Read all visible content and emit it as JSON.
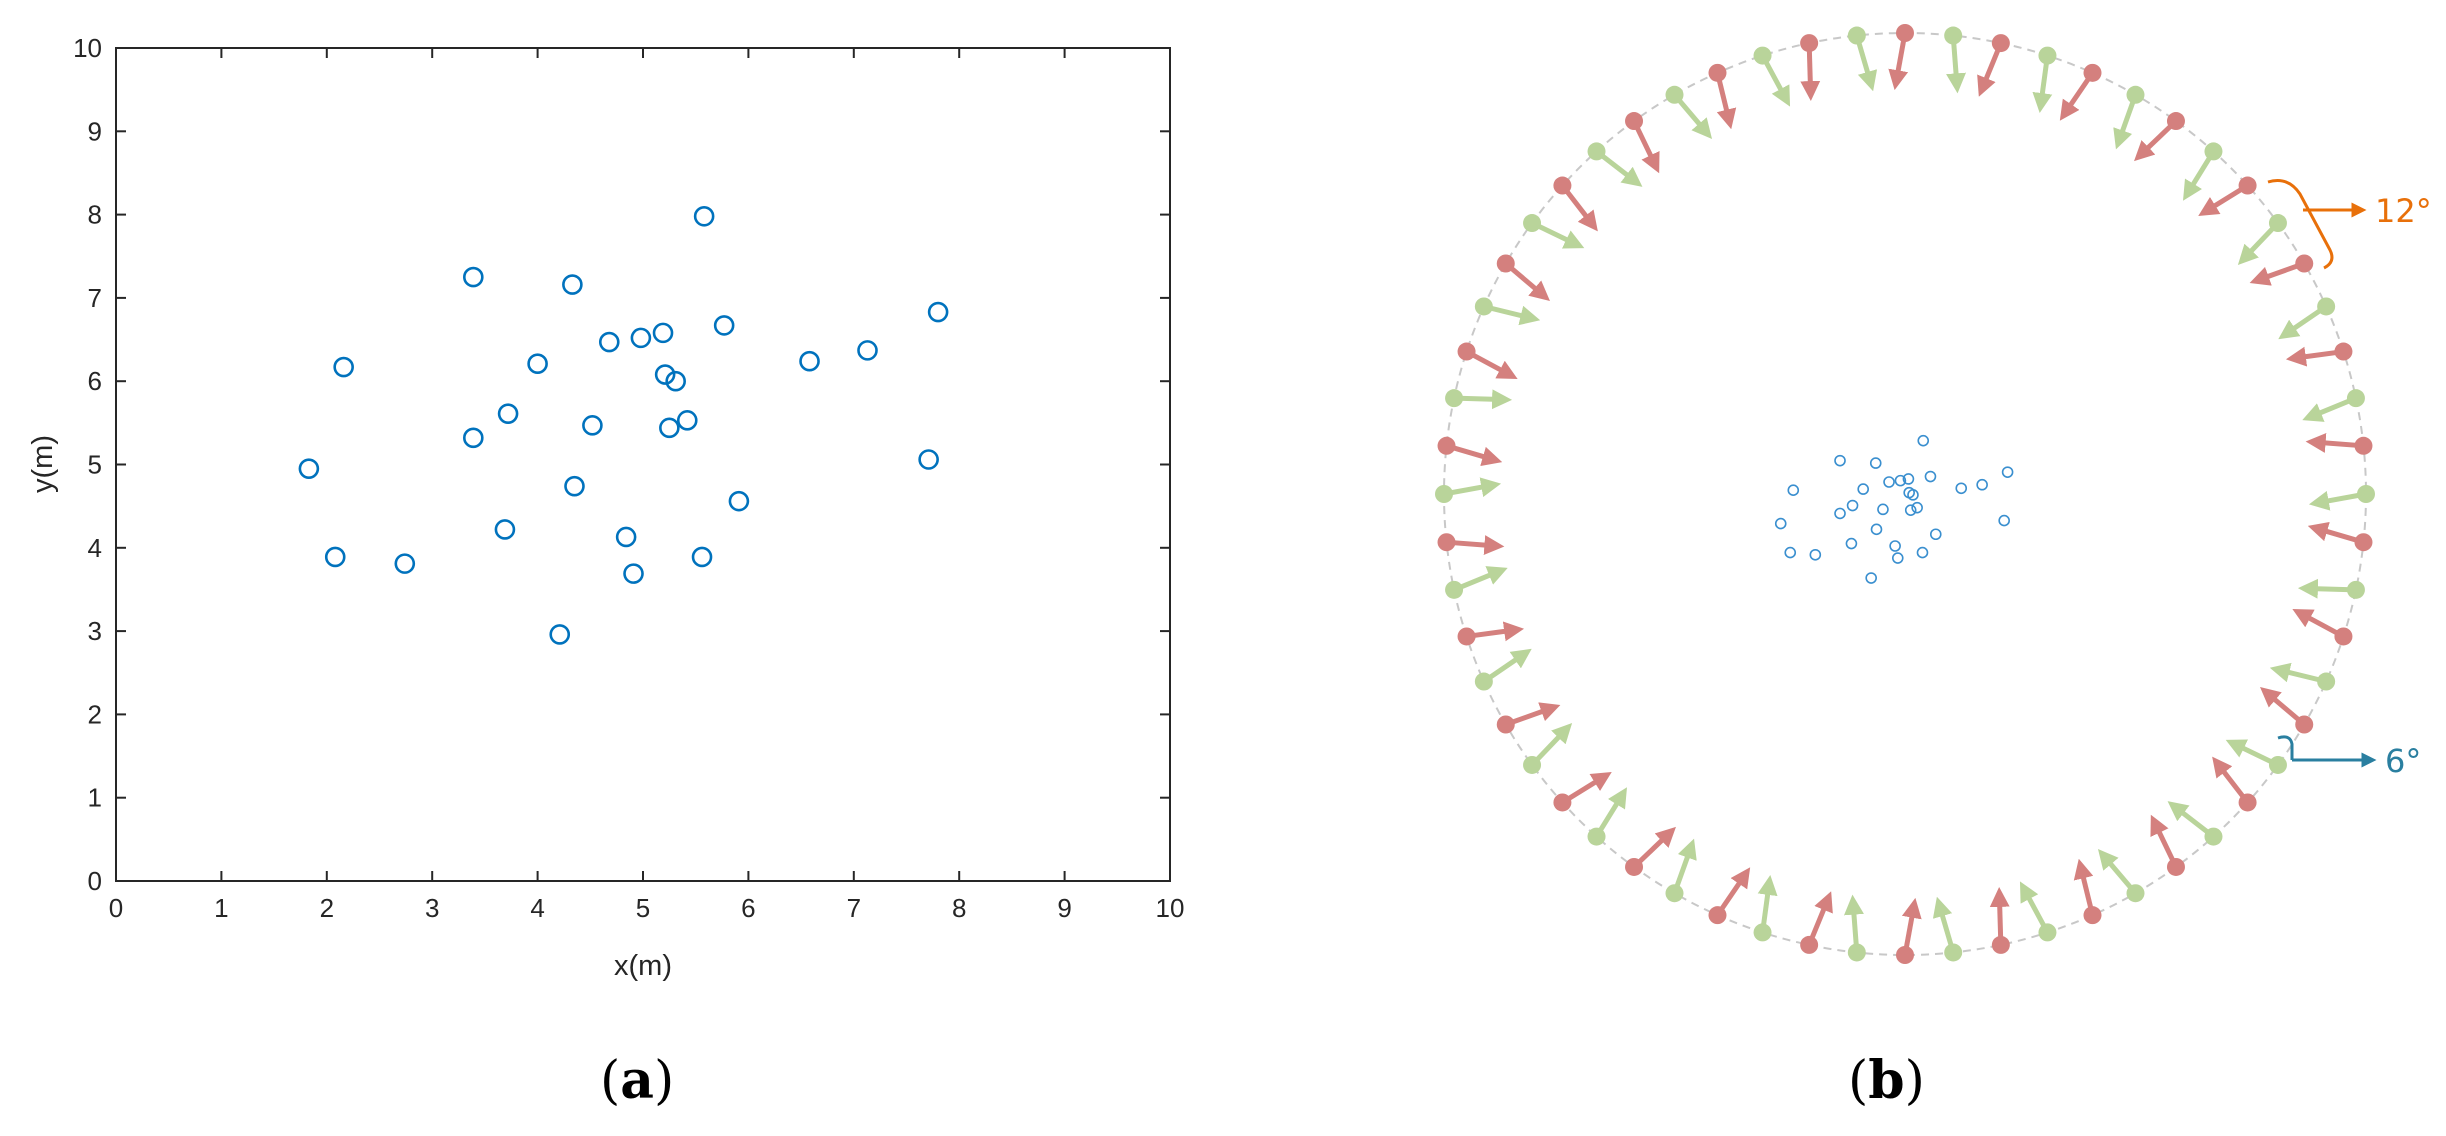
{
  "chart_data": [
    {
      "type": "scatter",
      "panel": "a",
      "xlabel": "x(m)",
      "ylabel": "y(m)",
      "xlim": [
        0,
        10
      ],
      "ylim": [
        0,
        10
      ],
      "xticks": [
        "0",
        "1",
        "2",
        "3",
        "4",
        "5",
        "6",
        "7",
        "8",
        "9",
        "10"
      ],
      "yticks": [
        "0",
        "1",
        "2",
        "3",
        "4",
        "5",
        "6",
        "7",
        "8",
        "9",
        "10"
      ],
      "grid": false,
      "marker": "open-circle",
      "color": "#0072BD",
      "points": [
        {
          "x": 1.83,
          "y": 4.95
        },
        {
          "x": 2.16,
          "y": 6.17
        },
        {
          "x": 2.08,
          "y": 3.89
        },
        {
          "x": 2.74,
          "y": 3.81
        },
        {
          "x": 3.39,
          "y": 7.25
        },
        {
          "x": 3.39,
          "y": 5.32
        },
        {
          "x": 3.72,
          "y": 5.61
        },
        {
          "x": 3.69,
          "y": 4.22
        },
        {
          "x": 4.0,
          "y": 6.21
        },
        {
          "x": 4.33,
          "y": 7.16
        },
        {
          "x": 4.35,
          "y": 4.74
        },
        {
          "x": 4.52,
          "y": 5.47
        },
        {
          "x": 4.21,
          "y": 2.96
        },
        {
          "x": 4.68,
          "y": 6.47
        },
        {
          "x": 4.84,
          "y": 4.13
        },
        {
          "x": 4.91,
          "y": 3.69
        },
        {
          "x": 4.98,
          "y": 6.52
        },
        {
          "x": 5.19,
          "y": 6.58
        },
        {
          "x": 5.21,
          "y": 6.08
        },
        {
          "x": 5.25,
          "y": 5.44
        },
        {
          "x": 5.31,
          "y": 6.0
        },
        {
          "x": 5.42,
          "y": 5.53
        },
        {
          "x": 5.56,
          "y": 3.89
        },
        {
          "x": 5.58,
          "y": 7.98
        },
        {
          "x": 5.77,
          "y": 6.67
        },
        {
          "x": 5.91,
          "y": 4.56
        },
        {
          "x": 6.58,
          "y": 6.24
        },
        {
          "x": 7.13,
          "y": 6.37
        },
        {
          "x": 7.71,
          "y": 5.06
        },
        {
          "x": 7.8,
          "y": 6.83
        }
      ]
    },
    {
      "type": "diagram",
      "panel": "b",
      "description_sources": "transducer ring around target points",
      "ring_elements": 60,
      "element_spacing_deg": 6,
      "pattern": "alternating red transmit / green receive elements",
      "colors": {
        "red": "#D4807E",
        "green": "#B9D49A",
        "ring": "#C8C8C8",
        "points": "#3A8FCF"
      },
      "annotations": [
        {
          "text": "12°",
          "color": "#E8700A"
        },
        {
          "text": "6°",
          "color": "#2A7FA0"
        }
      ]
    }
  ],
  "labels": {
    "panel_a": "a",
    "panel_b": "b",
    "angle_12": "12°",
    "angle_6": "6°"
  }
}
